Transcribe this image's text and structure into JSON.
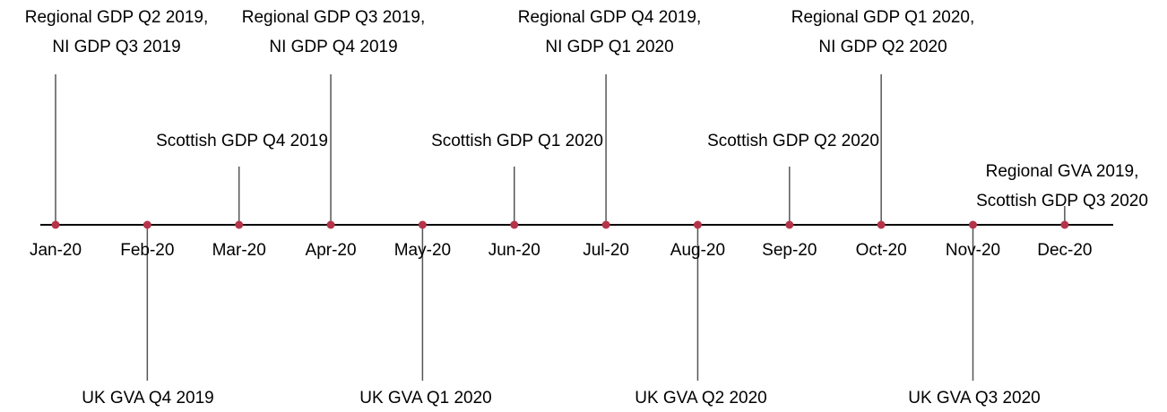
{
  "timeline": {
    "months": [
      {
        "label": "Jan-20",
        "event": [
          "Regional GDP Q2 2019,",
          "NI GDP Q3 2019"
        ]
      },
      {
        "label": "Feb-20",
        "event": [
          "UK GVA Q4 2019"
        ]
      },
      {
        "label": "Mar-20",
        "event": [
          "Scottish GDP Q4 2019"
        ]
      },
      {
        "label": "Apr-20",
        "event": [
          "Regional GDP Q3 2019,",
          "NI GDP Q4 2019"
        ]
      },
      {
        "label": "May-20",
        "event": [
          "UK GVA Q1 2020"
        ]
      },
      {
        "label": "Jun-20",
        "event": [
          "Scottish GDP Q1 2020"
        ]
      },
      {
        "label": "Jul-20",
        "event": [
          "Regional GDP Q4 2019,",
          "NI GDP Q1 2020"
        ]
      },
      {
        "label": "Aug-20",
        "event": [
          "UK GVA Q2 2020"
        ]
      },
      {
        "label": "Sep-20",
        "event": [
          "Scottish GDP Q2 2020"
        ]
      },
      {
        "label": "Oct-20",
        "event": [
          "Regional GDP Q1 2020,",
          "NI GDP Q2 2020"
        ]
      },
      {
        "label": "Nov-20",
        "event": [
          "UK GVA Q3 2020"
        ]
      },
      {
        "label": "Dec-20",
        "event": [
          "Regional GVA 2019,",
          "Scottish GDP Q3 2020"
        ]
      }
    ]
  }
}
